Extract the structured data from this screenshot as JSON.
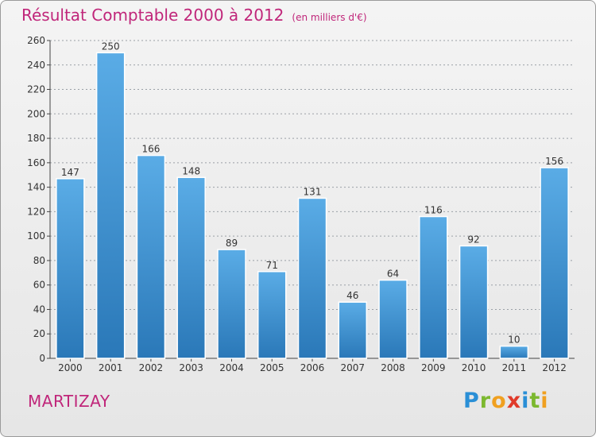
{
  "header": {
    "title": "Résultat Comptable 2000 à 2012",
    "subtitle": "(en milliers d'€)"
  },
  "footer": {
    "place": "MARTIZAY",
    "brand": "Proxiti",
    "brand_letters": [
      {
        "ch": "P",
        "color": "#2a8fd6"
      },
      {
        "ch": "r",
        "color": "#7cb82f"
      },
      {
        "ch": "o",
        "color": "#f0a020"
      },
      {
        "ch": "x",
        "color": "#e03a2a"
      },
      {
        "ch": "i",
        "color": "#2a8fd6"
      },
      {
        "ch": "t",
        "color": "#7cb82f"
      },
      {
        "ch": "i",
        "color": "#f0a020"
      }
    ]
  },
  "colors": {
    "bar_top": "#5aace6",
    "bar_bottom": "#2a78b8",
    "grid": "#9aa0a6",
    "text": "#333333",
    "accent": "#c0267a"
  },
  "chart_data": {
    "type": "bar",
    "title": "Résultat Comptable 2000 à 2012",
    "subtitle": "(en milliers d'€)",
    "categories": [
      "2000",
      "2001",
      "2002",
      "2003",
      "2004",
      "2005",
      "2006",
      "2007",
      "2008",
      "2009",
      "2010",
      "2011",
      "2012"
    ],
    "values": [
      147,
      250,
      166,
      148,
      89,
      71,
      131,
      46,
      64,
      116,
      92,
      10,
      156
    ],
    "ylim": [
      0,
      260
    ],
    "yticks": [
      0,
      20,
      40,
      60,
      80,
      100,
      120,
      140,
      160,
      180,
      200,
      220,
      240,
      260
    ],
    "grid": true,
    "data_labels": true
  }
}
